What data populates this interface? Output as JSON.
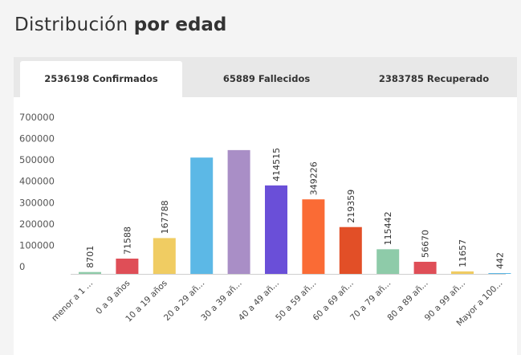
{
  "header": {
    "title_light": "Distribución",
    "title_bold": "por edad"
  },
  "tabs": [
    {
      "label": "2536198 Confirmados",
      "active": true
    },
    {
      "label": "65889 Fallecidos",
      "active": false
    },
    {
      "label": "2383785 Recuperado",
      "active": false
    }
  ],
  "chart_data": {
    "type": "bar",
    "title": "",
    "xlabel": "",
    "ylabel": "",
    "ylim": [
      0,
      700000
    ],
    "yticks": [
      "700000",
      "600000",
      "500000",
      "400000",
      "300000",
      "200000",
      "100000",
      "0"
    ],
    "categories": [
      "menor a 1 ...",
      "0 a 9 años",
      "10 a 19 años",
      "20 a 29 añ...",
      "30 a 39 añ...",
      "40 a 49 añ...",
      "50 a 59 añ...",
      "60 a 69 añ...",
      "70 a 79 añ...",
      "80 a 89 añ...",
      "90 a 99 añ...",
      "Mayor a 100..."
    ],
    "values": [
      8701,
      71588,
      167788,
      545000,
      580000,
      414515,
      349226,
      219359,
      115442,
      56670,
      11657,
      442
    ],
    "data_labels": [
      "8701",
      "71588",
      "167788",
      "",
      "",
      "414515",
      "349226",
      "219359",
      "115442",
      "56670",
      "11657",
      "442"
    ],
    "colors": [
      "#8ecba9",
      "#df4e57",
      "#f0cc62",
      "#5cb8e6",
      "#a98ec6",
      "#6a4fd8",
      "#fa6b35",
      "#e24f27",
      "#8ecba9",
      "#df4e57",
      "#f0cc62",
      "#5cb8e6"
    ],
    "grid": false,
    "legend": "none"
  }
}
